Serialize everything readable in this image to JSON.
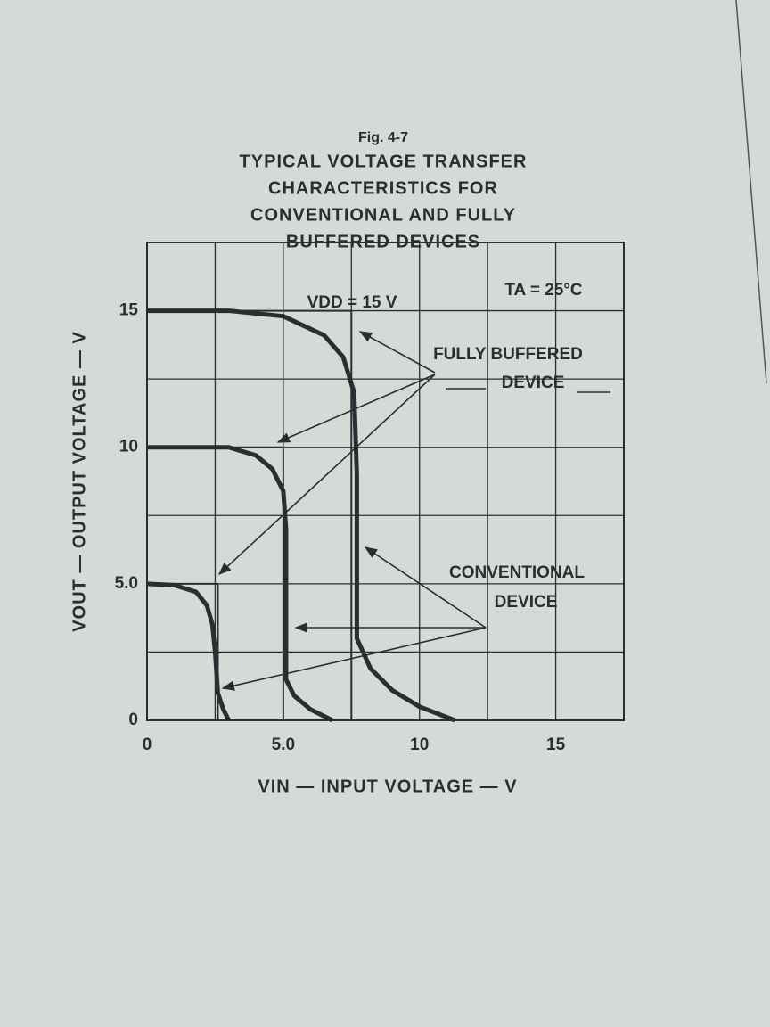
{
  "chart_data": {
    "type": "line",
    "figure": "Fig. 4-7",
    "title": [
      "TYPICAL VOLTAGE TRANSFER",
      "CHARACTERISTICS FOR",
      "CONVENTIONAL AND FULLY",
      "BUFFERED DEVICES"
    ],
    "x_label": "VIN — INPUT VOLTAGE — V",
    "y_label": "VOUT — OUTPUT VOLTAGE — V",
    "annotations": [
      "VDD = 15 V",
      "TA = 25°C",
      [
        "FULLY BUFFERED",
        "DEVICE"
      ],
      [
        "CONVENTIONAL",
        "DEVICE"
      ]
    ],
    "xlim": [
      0,
      17.5
    ],
    "ylim": [
      0,
      17.5
    ],
    "xticks": [
      0,
      {
        "value": 2.5,
        "label": null
      },
      {
        "value": 5,
        "label": "5.0"
      },
      {
        "value": 7.5,
        "label": null
      },
      10,
      {
        "value": 12.5,
        "label": null
      },
      15
    ],
    "yticks": [
      0,
      {
        "value": 2.5,
        "label": null
      },
      {
        "value": 5,
        "label": "5.0"
      },
      {
        "value": 7.5,
        "label": null
      },
      10,
      {
        "value": 12.5,
        "label": null
      },
      15
    ],
    "grid": true,
    "series": [
      {
        "color": "#2a2e33",
        "width": 5,
        "x": [
          0,
          1,
          1.8,
          2.2,
          2.4,
          2.5,
          2.6,
          2.8,
          3.0
        ],
        "values": [
          5,
          4.95,
          4.7,
          4.2,
          3.5,
          2.5,
          1,
          0.4,
          0
        ]
      },
      {
        "color": "#2a2e33",
        "width": 2,
        "x": [
          0,
          2.6,
          2.6
        ],
        "values": [
          5,
          5,
          0
        ]
      },
      {
        "color": "#2a2e33",
        "width": 5,
        "x": [
          0,
          3,
          4,
          4.6,
          5,
          5.1,
          5.1,
          5.4,
          6,
          6.8
        ],
        "values": [
          10,
          10,
          9.7,
          9.2,
          8.4,
          7,
          1.5,
          0.9,
          0.4,
          0
        ]
      },
      {
        "color": "#2a2e33",
        "width": 2,
        "x": [
          0,
          5,
          5
        ],
        "values": [
          10,
          10,
          0
        ]
      },
      {
        "color": "#2a2e33",
        "width": 5,
        "x": [
          0,
          3,
          5,
          6.5,
          7.2,
          7.6,
          7.7,
          7.7,
          8.2,
          9,
          10,
          11.3
        ],
        "values": [
          15,
          15,
          14.8,
          14.1,
          13.3,
          12,
          9,
          3,
          1.9,
          1.1,
          0.5,
          0
        ]
      },
      {
        "color": "#2a2e33",
        "width": 2,
        "x": [
          0,
          7.5,
          7.5
        ],
        "values": [
          15,
          15,
          0
        ]
      }
    ]
  }
}
